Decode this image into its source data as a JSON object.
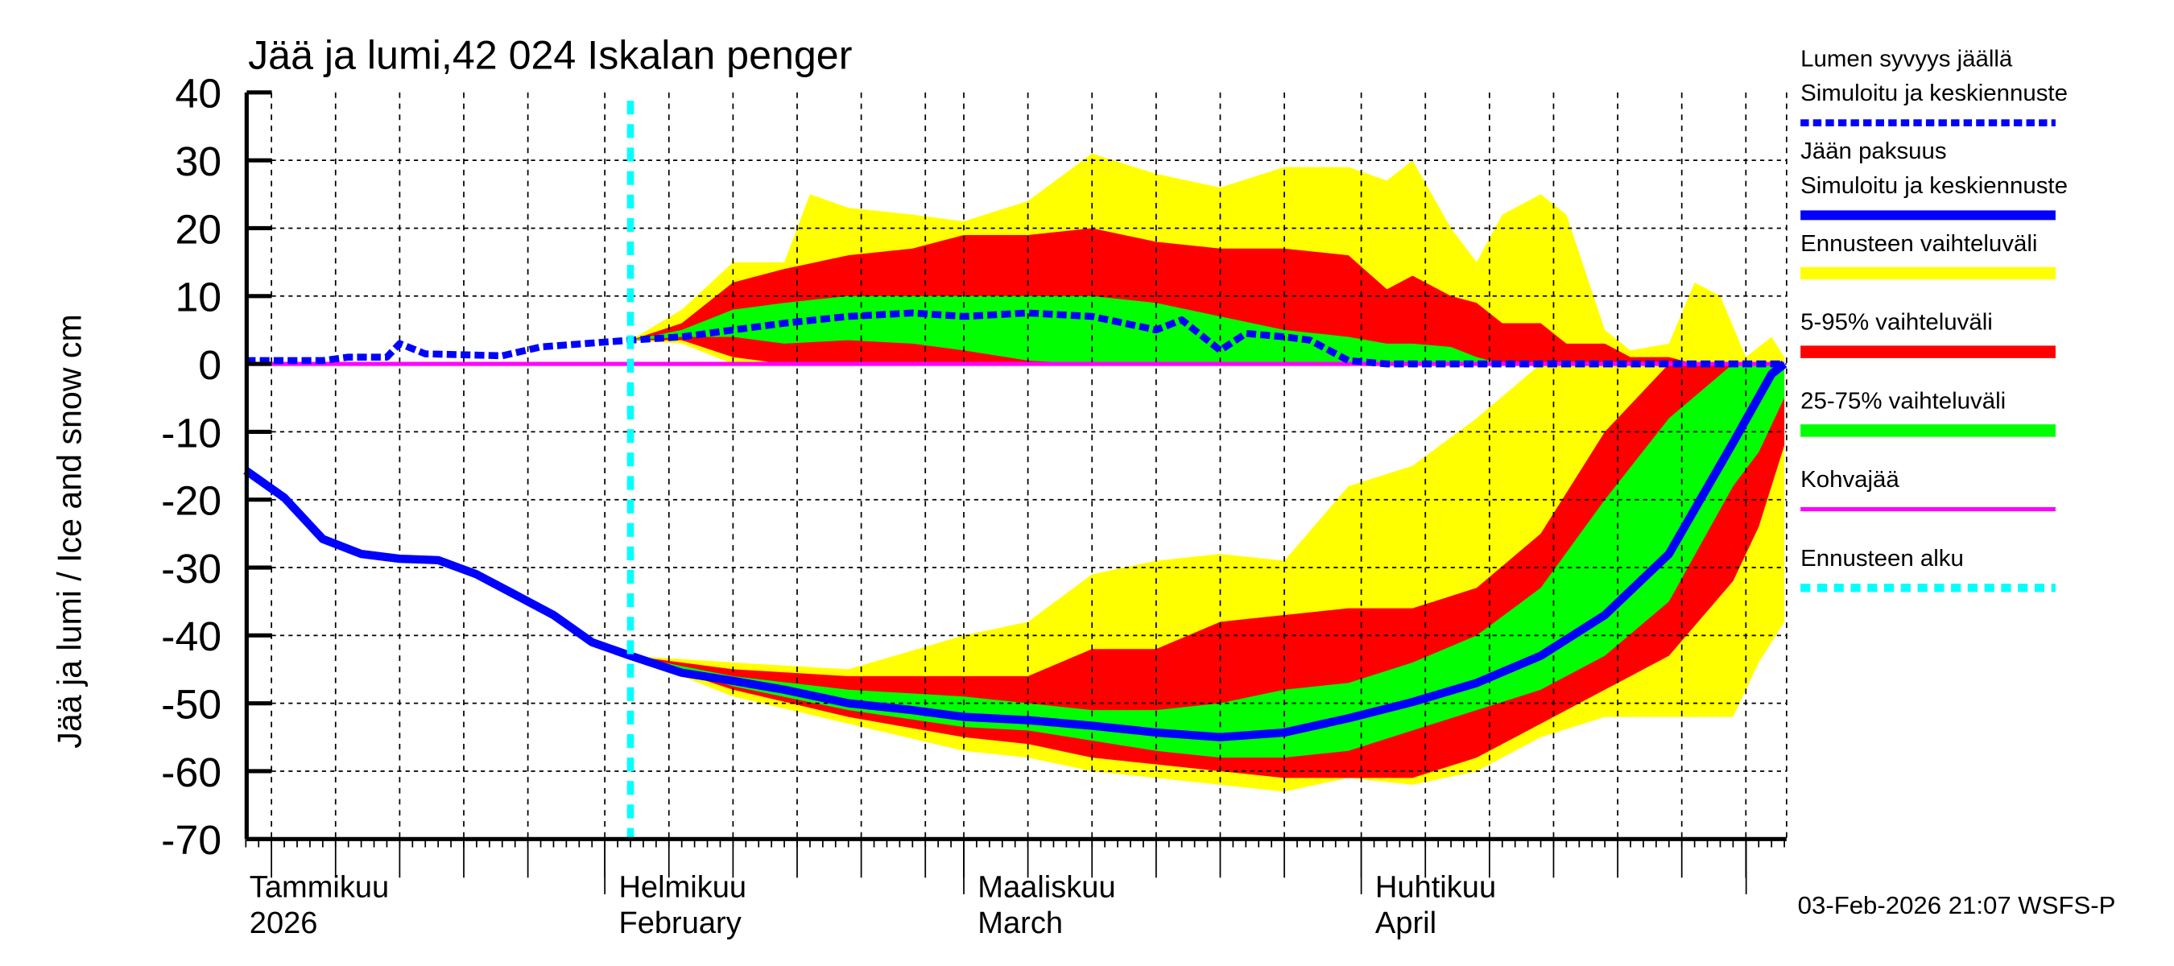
{
  "chart_data": {
    "type": "area",
    "title": "Jää ja lumi,42 024 Iskalan penger",
    "ylabel": "Jää ja lumi / Ice and snow    cm",
    "xlabel": "",
    "ylim": [
      -70,
      40
    ],
    "yticks": [
      40,
      30,
      20,
      10,
      0,
      -10,
      -20,
      -30,
      -40,
      -50,
      -60,
      -70
    ],
    "xlim": [
      "2026-01-04",
      "2026-05-04"
    ],
    "grid": true,
    "legend_placement": "right",
    "month_labels": [
      {
        "date": "2026-01-01",
        "fi": "Tammikuu",
        "en": "2026"
      },
      {
        "date": "2026-02-01",
        "fi": "Helmikuu",
        "en": "February"
      },
      {
        "date": "2026-03-01",
        "fi": "Maaliskuu",
        "en": "March"
      },
      {
        "date": "2026-04-01",
        "fi": "Huhtikuu",
        "en": "April"
      }
    ],
    "forecast_start": "2026-02-03",
    "colors": {
      "snow": "#0000ff",
      "ice": "#0000ff",
      "range": "#ffff00",
      "p5_95": "#ff0000",
      "p25_75": "#00ff00",
      "slush": "#ff00ff",
      "forecast_start": "#00ffff"
    },
    "legend": [
      {
        "line1": "Lumen syvyys jäällä",
        "line2": "Simuloitu ja keskiennuste",
        "style": "dashed",
        "color": "#0000ff"
      },
      {
        "line1": "Jään paksuus",
        "line2": "Simuloitu ja keskiennuste",
        "style": "solid",
        "color": "#0000ff"
      },
      {
        "line1": "Ennusteen vaihteluväli",
        "style": "bar",
        "color": "#ffff00"
      },
      {
        "line1": "5-95% vaihteluväli",
        "style": "bar",
        "color": "#ff0000"
      },
      {
        "line1": "25-75% vaihteluväli",
        "style": "bar",
        "color": "#00ff00"
      },
      {
        "line1": "Kohvajää",
        "style": "thin",
        "color": "#ff00ff"
      },
      {
        "line1": "Ennusteen alku",
        "style": "dotted",
        "color": "#00ffff"
      }
    ],
    "series": {
      "snow_median": [
        [
          "2026-01-04",
          0.5
        ],
        [
          "2026-01-10",
          0.5
        ],
        [
          "2026-01-12",
          1
        ],
        [
          "2026-01-15",
          1
        ],
        [
          "2026-01-16",
          3
        ],
        [
          "2026-01-18",
          1.5
        ],
        [
          "2026-01-24",
          1.2
        ],
        [
          "2026-01-27",
          2.5
        ],
        [
          "2026-02-03",
          3.5
        ],
        [
          "2026-02-07",
          4
        ],
        [
          "2026-02-11",
          5
        ],
        [
          "2026-02-15",
          6
        ],
        [
          "2026-02-20",
          7
        ],
        [
          "2026-02-25",
          7.5
        ],
        [
          "2026-03-01",
          7
        ],
        [
          "2026-03-06",
          7.5
        ],
        [
          "2026-03-11",
          7
        ],
        [
          "2026-03-16",
          5
        ],
        [
          "2026-03-18",
          6.5
        ],
        [
          "2026-03-21",
          2
        ],
        [
          "2026-03-23",
          4.5
        ],
        [
          "2026-03-26",
          4
        ],
        [
          "2026-03-28",
          3.5
        ],
        [
          "2026-03-31",
          0.5
        ],
        [
          "2026-04-03",
          0
        ],
        [
          "2026-05-04",
          0
        ]
      ],
      "ice_median": [
        [
          "2026-01-04",
          -15.7
        ],
        [
          "2026-01-07",
          -19.7
        ],
        [
          "2026-01-10",
          -25.8
        ],
        [
          "2026-01-13",
          -28
        ],
        [
          "2026-01-16",
          -28.7
        ],
        [
          "2026-01-19",
          -28.9
        ],
        [
          "2026-01-22",
          -31
        ],
        [
          "2026-01-25",
          -34
        ],
        [
          "2026-01-28",
          -37
        ],
        [
          "2026-01-31",
          -41
        ],
        [
          "2026-02-03",
          -43
        ],
        [
          "2026-02-07",
          -45.5
        ],
        [
          "2026-02-11",
          -46.7
        ],
        [
          "2026-02-15",
          -48
        ],
        [
          "2026-02-20",
          -50
        ],
        [
          "2026-02-25",
          -51
        ],
        [
          "2026-03-01",
          -52
        ],
        [
          "2026-03-06",
          -52.5
        ],
        [
          "2026-03-11",
          -53.3
        ],
        [
          "2026-03-16",
          -54.3
        ],
        [
          "2026-03-21",
          -55
        ],
        [
          "2026-03-26",
          -54.3
        ],
        [
          "2026-03-31",
          -52.2
        ],
        [
          "2026-04-05",
          -49.8
        ],
        [
          "2026-04-10",
          -47
        ],
        [
          "2026-04-15",
          -43
        ],
        [
          "2026-04-20",
          -37
        ],
        [
          "2026-04-25",
          -28
        ],
        [
          "2026-04-30",
          -11.6
        ],
        [
          "2026-05-03",
          -1.5
        ],
        [
          "2026-05-04",
          0
        ]
      ],
      "ice_range": [
        [
          "2026-02-03",
          -43,
          -43
        ],
        [
          "2026-02-11",
          -49,
          -44
        ],
        [
          "2026-02-20",
          -53,
          -45
        ],
        [
          "2026-03-01",
          -57,
          -40
        ],
        [
          "2026-03-06",
          -58,
          -38
        ],
        [
          "2026-03-11",
          -60,
          -31
        ],
        [
          "2026-03-16",
          -61,
          -29
        ],
        [
          "2026-03-21",
          -62,
          -28
        ],
        [
          "2026-03-26",
          -63,
          -29
        ],
        [
          "2026-03-31",
          -61,
          -18
        ],
        [
          "2026-04-05",
          -62,
          -15
        ],
        [
          "2026-04-10",
          -60,
          -8
        ],
        [
          "2026-04-15",
          -55,
          0
        ],
        [
          "2026-04-20",
          -52,
          0
        ],
        [
          "2026-04-25",
          -52,
          0
        ],
        [
          "2026-04-30",
          -52,
          0
        ],
        [
          "2026-05-02",
          -44,
          0
        ],
        [
          "2026-05-04",
          -38,
          0
        ]
      ],
      "ice_p5_95": [
        [
          "2026-02-03",
          -43,
          -43
        ],
        [
          "2026-02-11",
          -48,
          -45
        ],
        [
          "2026-02-20",
          -52,
          -46
        ],
        [
          "2026-03-01",
          -55,
          -46
        ],
        [
          "2026-03-06",
          -56,
          -46
        ],
        [
          "2026-03-11",
          -58,
          -42
        ],
        [
          "2026-03-16",
          -59,
          -42
        ],
        [
          "2026-03-21",
          -60,
          -38
        ],
        [
          "2026-03-26",
          -61,
          -37
        ],
        [
          "2026-03-31",
          -61,
          -36
        ],
        [
          "2026-04-05",
          -61,
          -36
        ],
        [
          "2026-04-10",
          -58,
          -33
        ],
        [
          "2026-04-15",
          -53,
          -25
        ],
        [
          "2026-04-20",
          -48,
          -10
        ],
        [
          "2026-04-25",
          -43,
          0
        ],
        [
          "2026-04-30",
          -32,
          0
        ],
        [
          "2026-05-02",
          -24,
          0
        ],
        [
          "2026-05-04",
          -12,
          0
        ]
      ],
      "ice_p25_75": [
        [
          "2026-02-03",
          -43,
          -43
        ],
        [
          "2026-02-11",
          -47.5,
          -46
        ],
        [
          "2026-02-20",
          -51,
          -48
        ],
        [
          "2026-03-01",
          -53.5,
          -49
        ],
        [
          "2026-03-06",
          -54,
          -50
        ],
        [
          "2026-03-11",
          -55.5,
          -51
        ],
        [
          "2026-03-16",
          -57,
          -51
        ],
        [
          "2026-03-21",
          -58,
          -50
        ],
        [
          "2026-03-26",
          -58,
          -48
        ],
        [
          "2026-03-31",
          -57,
          -47
        ],
        [
          "2026-04-05",
          -54,
          -44
        ],
        [
          "2026-04-10",
          -51,
          -40
        ],
        [
          "2026-04-15",
          -48,
          -33
        ],
        [
          "2026-04-20",
          -43,
          -20
        ],
        [
          "2026-04-25",
          -35,
          -8
        ],
        [
          "2026-04-30",
          -18,
          0
        ],
        [
          "2026-05-02",
          -13,
          0
        ],
        [
          "2026-05-04",
          -5,
          0
        ]
      ],
      "snow_range": [
        [
          "2026-02-03",
          3.5,
          3.5
        ],
        [
          "2026-02-07",
          3,
          8
        ],
        [
          "2026-02-11",
          0,
          15
        ],
        [
          "2026-02-15",
          0,
          15
        ],
        [
          "2026-02-17",
          0,
          25
        ],
        [
          "2026-02-20",
          0,
          23
        ],
        [
          "2026-02-25",
          0,
          22
        ],
        [
          "2026-03-01",
          0,
          21
        ],
        [
          "2026-03-06",
          0,
          24
        ],
        [
          "2026-03-11",
          0,
          31
        ],
        [
          "2026-03-16",
          0,
          28
        ],
        [
          "2026-03-21",
          0,
          26
        ],
        [
          "2026-03-26",
          0,
          29
        ],
        [
          "2026-03-31",
          0,
          29
        ],
        [
          "2026-04-03",
          0,
          27
        ],
        [
          "2026-04-05",
          0,
          30
        ],
        [
          "2026-04-08",
          0,
          20
        ],
        [
          "2026-04-10",
          0,
          15
        ],
        [
          "2026-04-12",
          0,
          22
        ],
        [
          "2026-04-15",
          0,
          25
        ],
        [
          "2026-04-17",
          0,
          22
        ],
        [
          "2026-04-20",
          0,
          5
        ],
        [
          "2026-04-22",
          0,
          2
        ],
        [
          "2026-04-25",
          0,
          3
        ],
        [
          "2026-04-27",
          0,
          12
        ],
        [
          "2026-04-29",
          0,
          10
        ],
        [
          "2026-05-01",
          0,
          1
        ],
        [
          "2026-05-03",
          0,
          4
        ],
        [
          "2026-05-04",
          0,
          1
        ]
      ],
      "snow_p5_95": [
        [
          "2026-02-03",
          3.5,
          3.5
        ],
        [
          "2026-02-07",
          3.5,
          6
        ],
        [
          "2026-02-11",
          1,
          12
        ],
        [
          "2026-02-15",
          0,
          14
        ],
        [
          "2026-02-20",
          0,
          16
        ],
        [
          "2026-02-25",
          0,
          17
        ],
        [
          "2026-03-01",
          0,
          19
        ],
        [
          "2026-03-06",
          0,
          19
        ],
        [
          "2026-03-11",
          0,
          20
        ],
        [
          "2026-03-16",
          0,
          18
        ],
        [
          "2026-03-21",
          0,
          17
        ],
        [
          "2026-03-26",
          0,
          17
        ],
        [
          "2026-03-31",
          0,
          16
        ],
        [
          "2026-04-03",
          0,
          11
        ],
        [
          "2026-04-05",
          0,
          13
        ],
        [
          "2026-04-08",
          0,
          10
        ],
        [
          "2026-04-10",
          0,
          9
        ],
        [
          "2026-04-12",
          0,
          6
        ],
        [
          "2026-04-15",
          0,
          6
        ],
        [
          "2026-04-17",
          0,
          3
        ],
        [
          "2026-04-20",
          0,
          3
        ],
        [
          "2026-04-22",
          0,
          1
        ],
        [
          "2026-04-25",
          0,
          1
        ],
        [
          "2026-04-27",
          0,
          0
        ]
      ],
      "snow_p25_75": [
        [
          "2026-02-03",
          3.5,
          3.5
        ],
        [
          "2026-02-07",
          4,
          5
        ],
        [
          "2026-02-11",
          4,
          8
        ],
        [
          "2026-02-15",
          3,
          9
        ],
        [
          "2026-02-20",
          3.5,
          10
        ],
        [
          "2026-02-25",
          3,
          10
        ],
        [
          "2026-03-01",
          2,
          10
        ],
        [
          "2026-03-06",
          0.5,
          10
        ],
        [
          "2026-03-11",
          0,
          10
        ],
        [
          "2026-03-16",
          0,
          9
        ],
        [
          "2026-03-21",
          0,
          7
        ],
        [
          "2026-03-26",
          0,
          5
        ],
        [
          "2026-03-31",
          0,
          4
        ],
        [
          "2026-04-03",
          0,
          3
        ],
        [
          "2026-04-05",
          0,
          3
        ],
        [
          "2026-04-08",
          0,
          2.5
        ],
        [
          "2026-04-10",
          0,
          1
        ],
        [
          "2026-04-12",
          0,
          0
        ]
      ],
      "slush": [
        [
          "2026-01-04",
          0
        ],
        [
          "2026-05-04",
          0
        ]
      ]
    }
  },
  "footer": {
    "timestamp": "03-Feb-2026 21:07 WSFS-P"
  }
}
